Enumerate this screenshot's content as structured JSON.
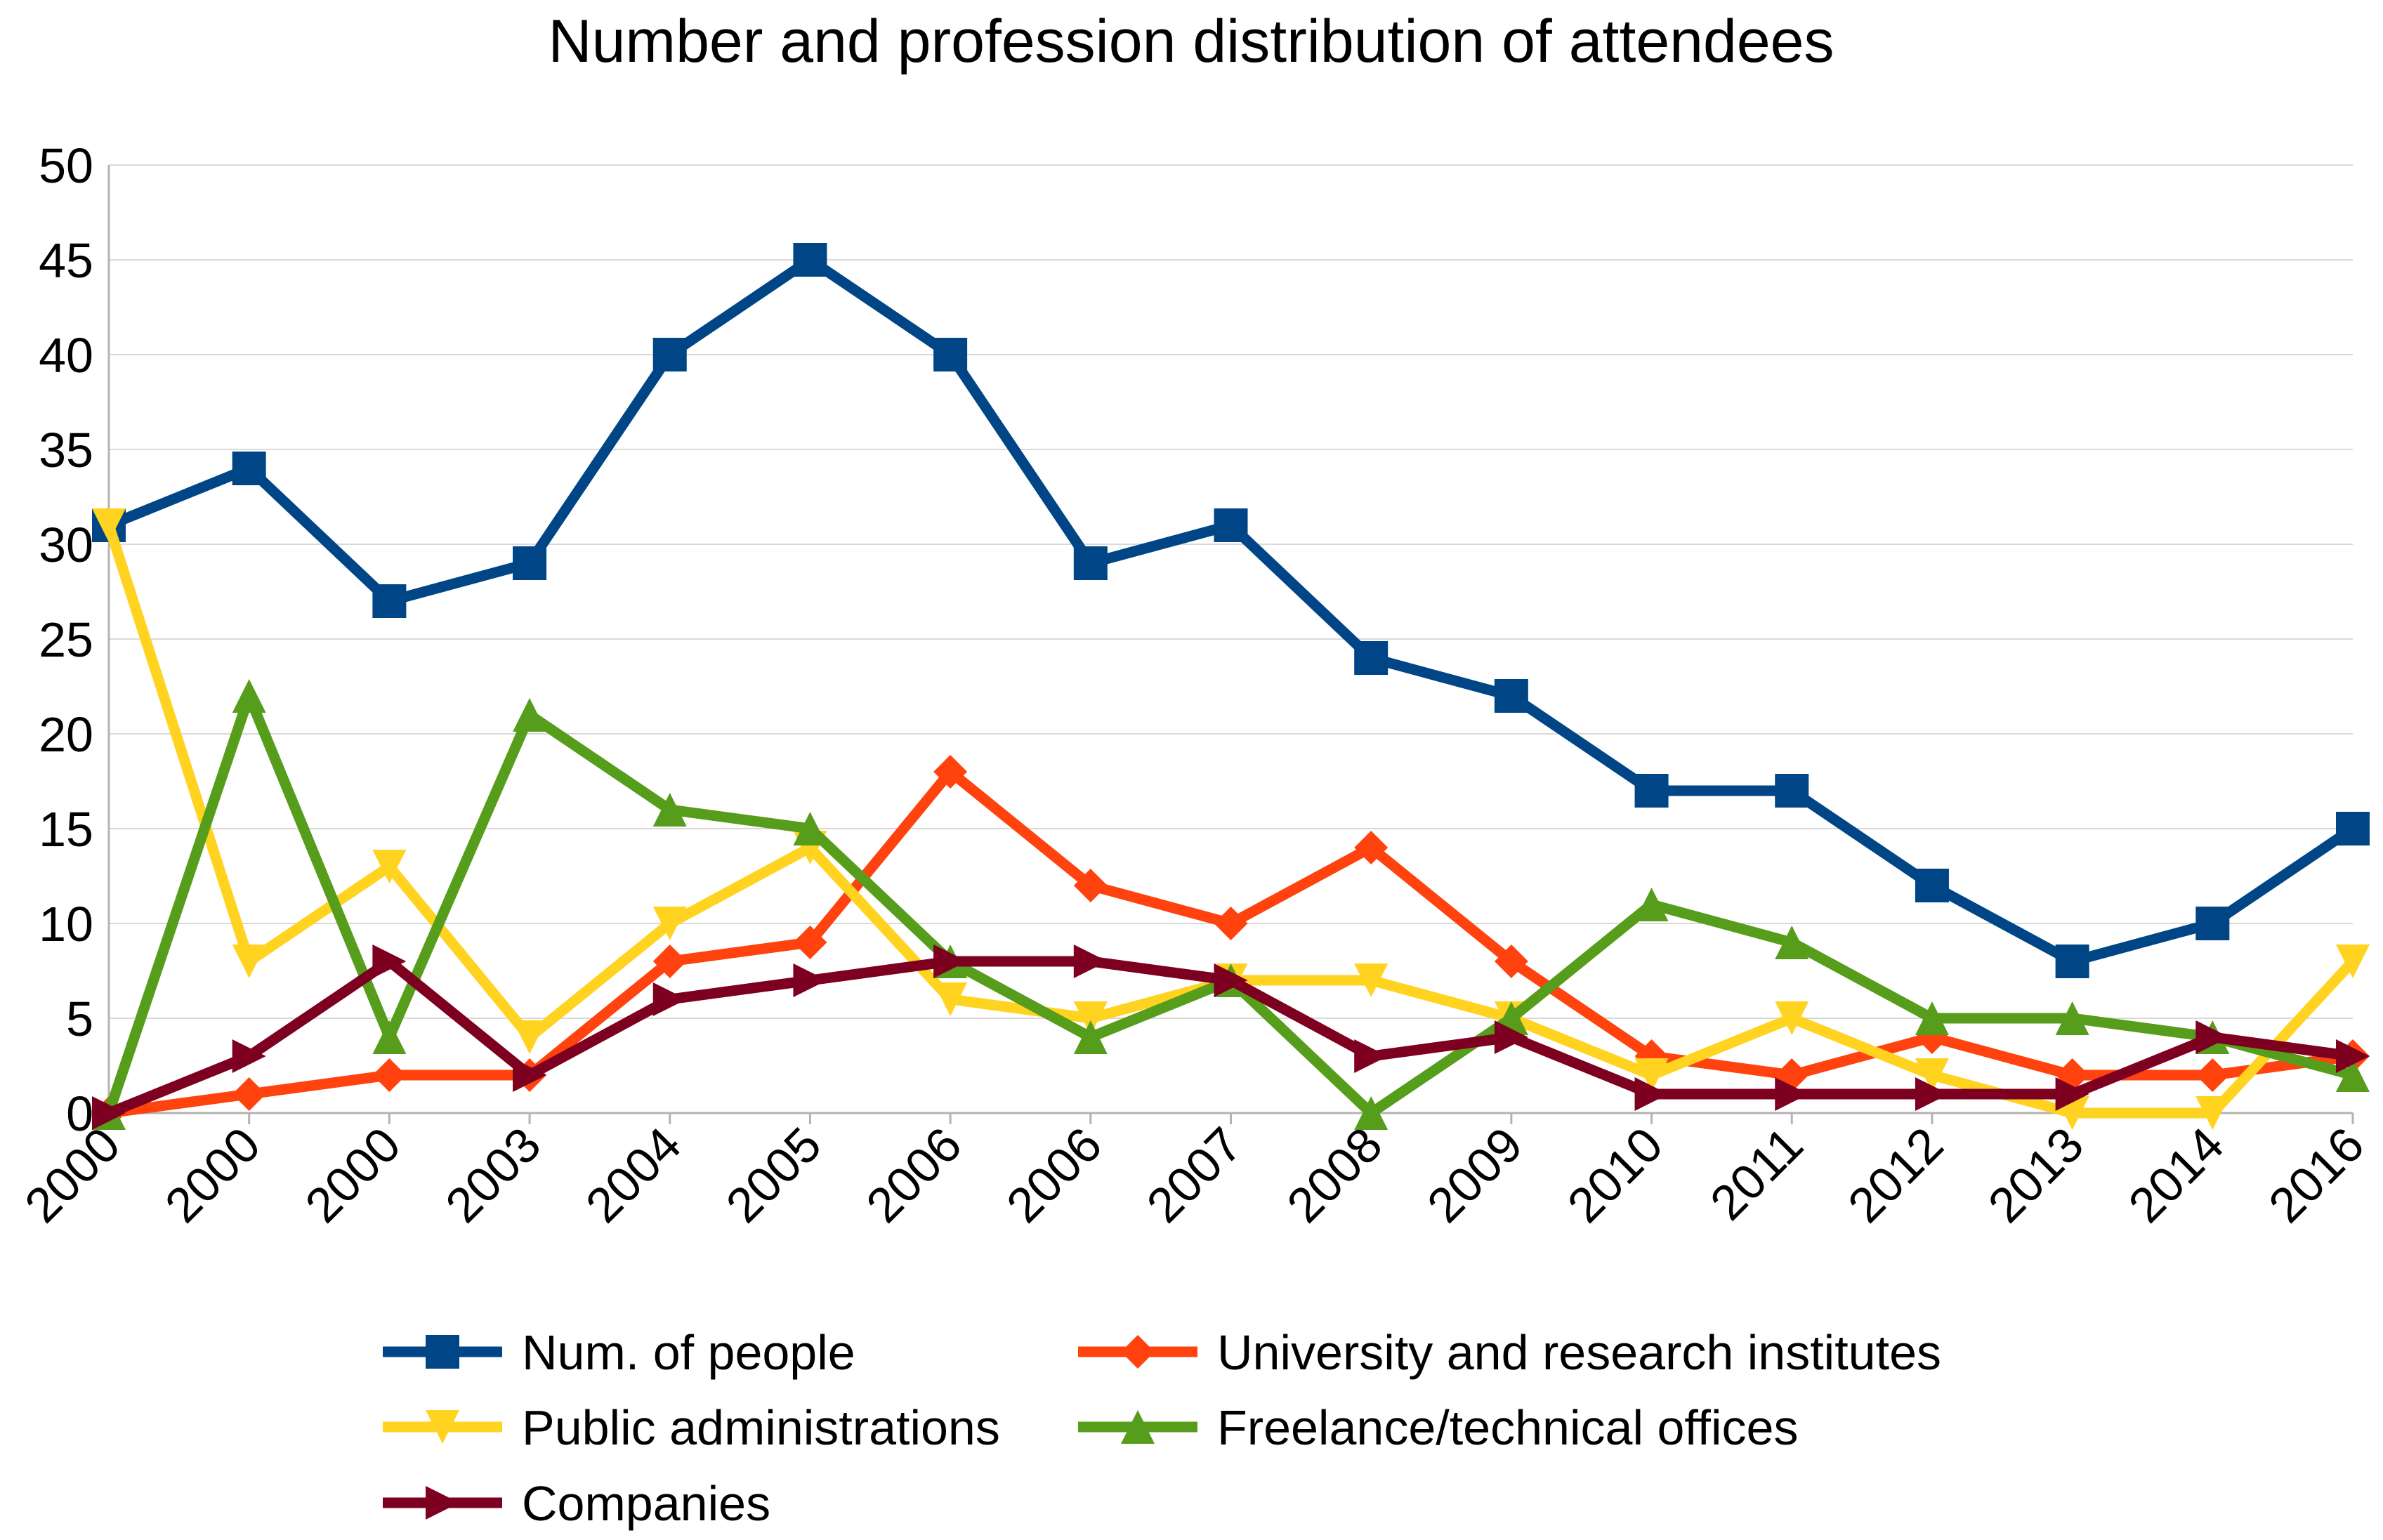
{
  "chart_data": {
    "type": "line",
    "title": "Number and profession distribution of attendees",
    "xlabel": "",
    "ylabel": "",
    "ylim": [
      0,
      50
    ],
    "yticks": [
      0,
      5,
      10,
      15,
      20,
      25,
      30,
      35,
      40,
      45,
      50
    ],
    "grid": true,
    "legend_position": "bottom",
    "categories": [
      "2000",
      "2000",
      "2000",
      "2003",
      "2004",
      "2005",
      "2006",
      "2006",
      "2007",
      "2008",
      "2009",
      "2010",
      "2011",
      "2012",
      "2013",
      "2014",
      "2016"
    ],
    "series": [
      {
        "name": "Num. of people",
        "color": "#004586",
        "marker": "square",
        "values": [
          31,
          34,
          27,
          29,
          40,
          45,
          40,
          29,
          31,
          24,
          22,
          17,
          17,
          12,
          8,
          10,
          15
        ]
      },
      {
        "name": "University and research institutes",
        "color": "#ff420e",
        "marker": "diamond",
        "values": [
          0,
          1,
          2,
          2,
          8,
          9,
          18,
          12,
          10,
          14,
          8,
          3,
          2,
          4,
          2,
          2,
          3
        ]
      },
      {
        "name": "Public administrations",
        "color": "#ffd320",
        "marker": "triangle-down",
        "values": [
          31,
          8,
          13,
          4,
          10,
          14,
          6,
          5,
          7,
          7,
          5,
          2,
          5,
          2,
          0,
          0,
          8
        ]
      },
      {
        "name": "Freelance/technical offices",
        "color": "#579d1c",
        "marker": "triangle-up",
        "values": [
          0,
          22,
          4,
          21,
          16,
          15,
          8,
          4,
          7,
          0,
          5,
          11,
          9,
          5,
          5,
          4,
          2
        ]
      },
      {
        "name": "Companies",
        "color": "#7e0021",
        "marker": "triangle-right",
        "values": [
          0,
          3,
          8,
          2,
          6,
          7,
          8,
          8,
          7,
          3,
          4,
          1,
          1,
          1,
          1,
          4,
          3
        ]
      }
    ]
  }
}
